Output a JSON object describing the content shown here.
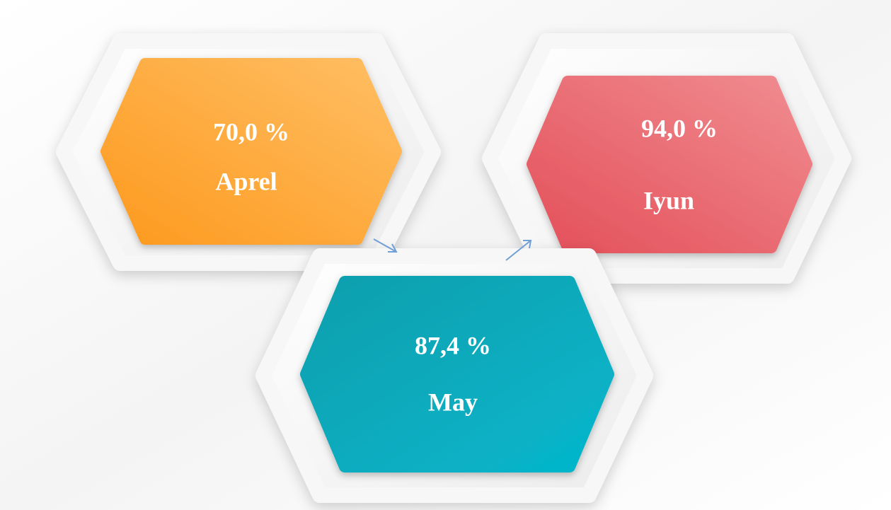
{
  "nodes": [
    {
      "value": "70,0 %",
      "label": "Aprel"
    },
    {
      "value": "94,0 %",
      "label": "Iyun"
    },
    {
      "value": "87,4 %",
      "label": "May"
    }
  ]
}
